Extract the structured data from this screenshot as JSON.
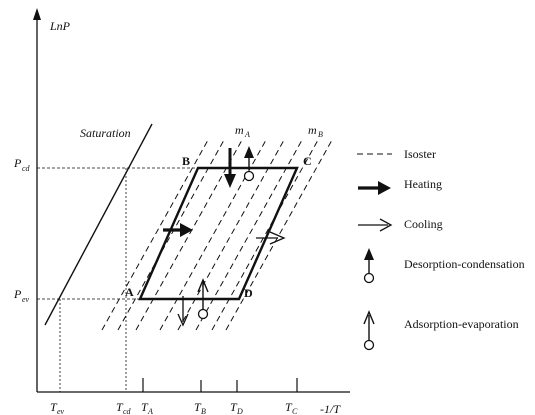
{
  "axes": {
    "y_label": "LnP",
    "x_label": "-1/T"
  },
  "pressures": {
    "condensation": {
      "base": "P",
      "sub": "cd"
    },
    "evaporation": {
      "base": "P",
      "sub": "ev"
    }
  },
  "temperatures": [
    {
      "id": "ev",
      "base": "T",
      "sub": "ev"
    },
    {
      "id": "cd",
      "base": "T",
      "sub": "cd"
    },
    {
      "id": "A",
      "base": "T",
      "sub": "A"
    },
    {
      "id": "B",
      "base": "T",
      "sub": "B"
    },
    {
      "id": "D",
      "base": "T",
      "sub": "D"
    },
    {
      "id": "C",
      "base": "T",
      "sub": "C"
    }
  ],
  "saturation_label": "Saturation",
  "isoster_labels": [
    {
      "base": "m",
      "sub": "A"
    },
    {
      "base": "m",
      "sub": "B"
    }
  ],
  "corners": {
    "A": "A",
    "B": "B",
    "C": "C",
    "D": "D"
  },
  "legend": {
    "isoster": "Isoster",
    "heating": "Heating",
    "cooling": "Cooling",
    "desorption": "Desorption-condensation",
    "adsorption": "Adsorption-evaporation"
  }
}
